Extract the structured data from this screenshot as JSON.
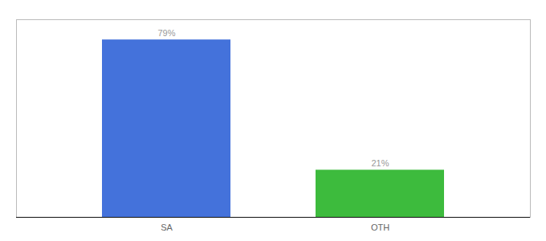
{
  "chart_data": {
    "type": "bar",
    "categories": [
      "SA",
      "OTH"
    ],
    "values": [
      79,
      21
    ],
    "value_labels": [
      "79%",
      "21%"
    ],
    "colors": [
      "#4472db",
      "#3dbb3d"
    ],
    "ylim": [
      0,
      88
    ],
    "data_labels": true,
    "tick_labels": "x"
  }
}
